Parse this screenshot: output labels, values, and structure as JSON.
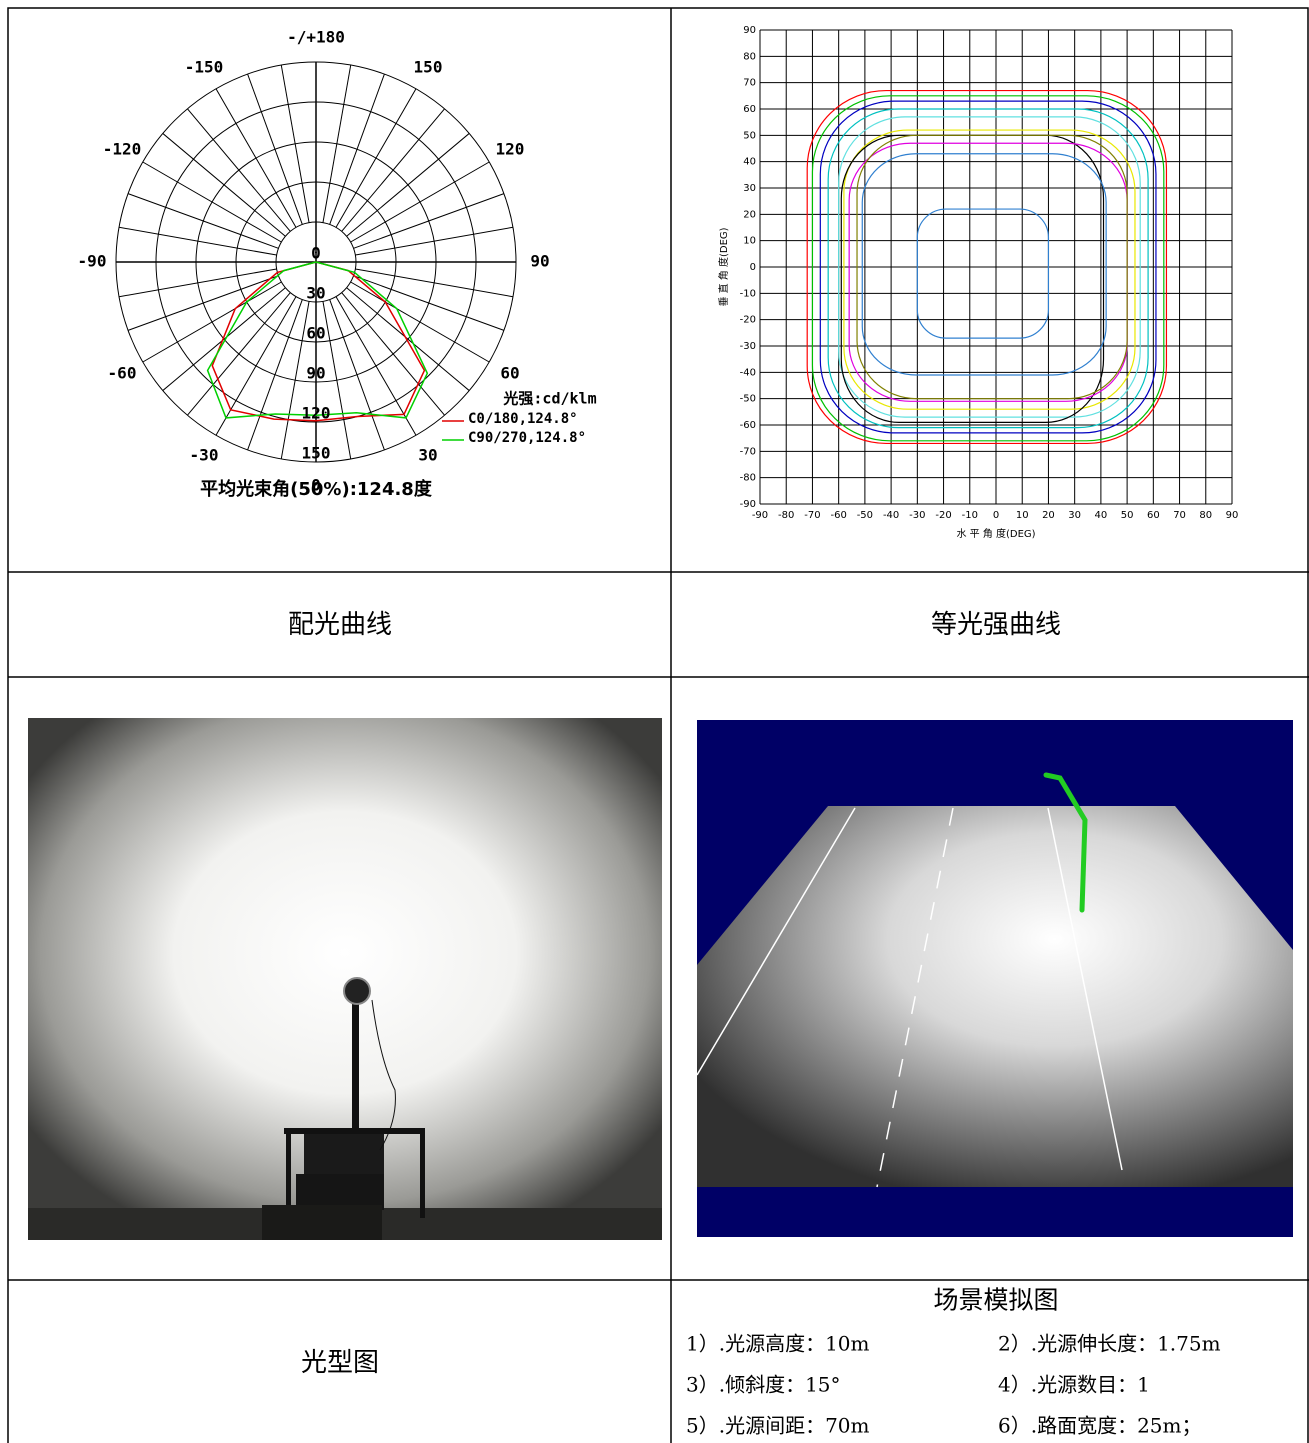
{
  "polar_chart": {
    "type": "polar",
    "angle_ticks": [
      {
        "value": 180,
        "label": "-/+180"
      },
      -150,
      150,
      -120,
      120,
      -90,
      90,
      -60,
      60,
      -30,
      30,
      0
    ],
    "rlim": [
      0,
      150
    ],
    "rticks": [
      0,
      30,
      60,
      90,
      120,
      150
    ],
    "unit_label": "光强:cd/klm",
    "angles": [
      -90,
      -75,
      -60,
      -45,
      -30,
      -15,
      0,
      15,
      30,
      45,
      60,
      75,
      90
    ],
    "series": [
      {
        "name": "C0/180,124.8°",
        "color": "#e00000",
        "values": [
          0,
          30,
          70,
          110,
          128,
          122,
          119,
          120,
          132,
          115,
          60,
          25,
          0
        ]
      },
      {
        "name": "C90/270,124.8°",
        "color": "#00d000",
        "values": [
          0,
          25,
          60,
          115,
          135,
          118,
          115,
          117,
          135,
          118,
          70,
          30,
          0
        ]
      }
    ],
    "footer": "平均光束角(50%):124.8度"
  },
  "isocandela_chart": {
    "type": "contour",
    "xlim": [
      -90,
      90
    ],
    "ylim": [
      -90,
      90
    ],
    "xticks": [
      -90,
      -80,
      -70,
      -60,
      -50,
      -40,
      -30,
      -20,
      -10,
      0,
      10,
      20,
      30,
      40,
      50,
      60,
      70,
      80,
      90
    ],
    "yticks": [
      -90,
      -80,
      -70,
      -60,
      -50,
      -40,
      -30,
      -20,
      -10,
      0,
      10,
      20,
      30,
      40,
      50,
      60,
      70,
      80,
      90
    ],
    "grid": true,
    "xlabel": "水 平 角 度(DEG)",
    "ylabel": "垂 直 角 度(DEG)",
    "contours": [
      {
        "color": "#ff0000",
        "x_extent": [
          -72,
          65
        ],
        "y_extent": [
          -67,
          67
        ]
      },
      {
        "color": "#00c000",
        "x_extent": [
          -70,
          64
        ],
        "y_extent": [
          -66,
          65
        ]
      },
      {
        "color": "#0000c0",
        "x_extent": [
          -67,
          61
        ],
        "y_extent": [
          -63,
          63
        ]
      },
      {
        "color": "#00c0c0",
        "x_extent": [
          -64,
          58
        ],
        "y_extent": [
          -61,
          60
        ]
      },
      {
        "color": "#60e0e0",
        "x_extent": [
          -60,
          55
        ],
        "y_extent": [
          -57,
          57
        ]
      },
      {
        "color": "#e8e800",
        "x_extent": [
          -58,
          53
        ],
        "y_extent": [
          -54,
          52
        ]
      },
      {
        "color": "#000000",
        "x_extent": [
          -59,
          41
        ],
        "y_extent": [
          -59,
          50
        ]
      },
      {
        "color": "#e000e0",
        "x_extent": [
          -56,
          50
        ],
        "y_extent": [
          -51,
          47
        ]
      },
      {
        "color": "#808000",
        "x_extent": [
          -53,
          50
        ],
        "y_extent": [
          -50,
          50
        ]
      },
      {
        "color": "#3080d0",
        "x_extent": [
          -51,
          42
        ],
        "y_extent": [
          -41,
          43
        ]
      },
      {
        "color": "#3080d0",
        "x_extent": [
          -30,
          20
        ],
        "y_extent": [
          -27,
          22
        ]
      }
    ]
  },
  "captions": {
    "polar": "配光曲线",
    "isocandela": "等光强曲线",
    "beam_photo": "光型图",
    "scene": "场景模拟图"
  },
  "scene_parameters": [
    "1）.光源高度：10m",
    "2）.光源伸长度：1.75m",
    "3）.倾斜度：15°",
    "4）.光源数目：1",
    "5）.光源间距：70m",
    "6）.路面宽度：25m；"
  ]
}
